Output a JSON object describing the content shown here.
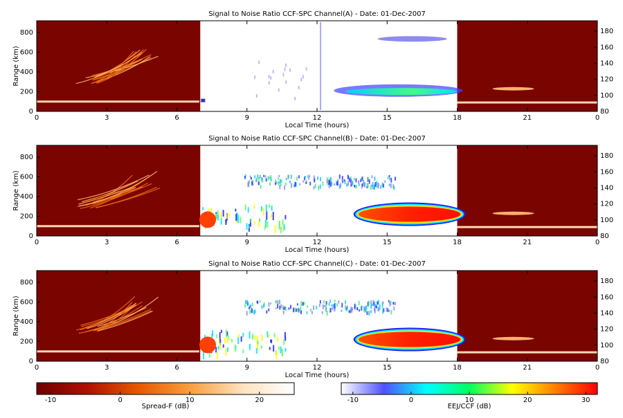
{
  "chart_data": [
    {
      "type": "rti",
      "title": "Signal to Noise Ratio CCF-SPC Channel(A) - Date: 01-Dec-2007",
      "x_label": "Local Time (hours)",
      "y_label": "Range (km)",
      "xlim": [
        0,
        24
      ],
      "xticks": [
        0,
        3,
        6,
        9,
        12,
        15,
        18,
        21,
        {
          "value": 24,
          "label": "0"
        }
      ],
      "ylim": [
        0,
        920
      ],
      "yticks": [
        0,
        200,
        400,
        600,
        800
      ],
      "y2lim": [
        80,
        193
      ],
      "y2ticks": [
        80,
        100,
        120,
        140,
        160,
        180
      ]
    },
    {
      "type": "rti",
      "title": "Signal to Noise Ratio CCF-SPC Channel(B) - Date: 01-Dec-2007",
      "x_label": "Local Time (hours)",
      "y_label": "Range (km)",
      "xlim": [
        0,
        24
      ],
      "xticks": [
        0,
        3,
        6,
        9,
        12,
        15,
        18,
        21,
        {
          "value": 24,
          "label": "0"
        }
      ],
      "ylim": [
        0,
        920
      ],
      "yticks": [
        0,
        200,
        400,
        600,
        800
      ],
      "y2lim": [
        80,
        193
      ],
      "y2ticks": [
        80,
        100,
        120,
        140,
        160,
        180
      ]
    },
    {
      "type": "rti",
      "title": "Signal to Noise Ratio CCF-SPC Channel(C) - Date: 01-Dec-2007",
      "x_label": "Local Time (hours)",
      "y_label": "Range (km)",
      "xlim": [
        0,
        24
      ],
      "xticks": [
        0,
        3,
        6,
        9,
        12,
        15,
        18,
        21,
        {
          "value": 24,
          "label": "0"
        }
      ],
      "ylim": [
        0,
        920
      ],
      "yticks": [
        0,
        200,
        400,
        600,
        800
      ],
      "y2lim": [
        80,
        193
      ],
      "y2ticks": [
        80,
        100,
        120,
        140,
        160,
        180
      ]
    },
    {
      "type": "colorbar",
      "label": "Spread-F (dB)",
      "xlim": [
        -12,
        25
      ],
      "xticks": [
        -10,
        0,
        10,
        20
      ],
      "colors": [
        "#6e0000",
        "#b01000",
        "#e85a00",
        "#f9a040",
        "#ffe2c0",
        "#ffffff"
      ]
    },
    {
      "type": "colorbar",
      "label": "EEJ/CCF (dB)",
      "xlim": [
        -12,
        32
      ],
      "xticks": [
        -10,
        0,
        10,
        20,
        30
      ],
      "colors": [
        "#ffffff",
        "#5050ff",
        "#00ffff",
        "#00ff60",
        "#ffff00",
        "#ff8000",
        "#ff0000"
      ]
    }
  ]
}
